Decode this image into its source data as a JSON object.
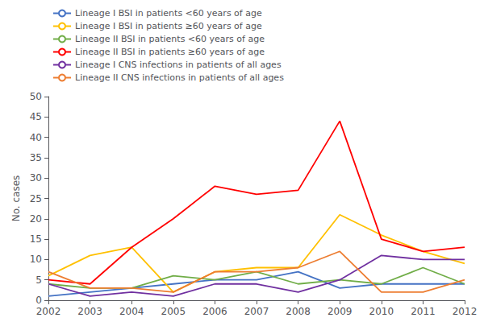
{
  "chart_data": {
    "type": "line",
    "ylabel": "No. cases",
    "x": [
      2002,
      2003,
      2004,
      2005,
      2006,
      2007,
      2008,
      2009,
      2010,
      2011,
      2012
    ],
    "series": [
      {
        "name": "Lineage I BSI in patients <60 years of age",
        "color": "#4472C4",
        "values": [
          1,
          2,
          3,
          4,
          5,
          5,
          7,
          3,
          4,
          4,
          4
        ]
      },
      {
        "name": "Lineage I BSI in patients ≥60 years of age",
        "color": "#FFC000",
        "values": [
          6,
          11,
          13,
          2,
          7,
          8,
          8,
          21,
          16,
          12,
          9
        ]
      },
      {
        "name": "Lineage II BSI in patients <60 years of age",
        "color": "#70AD47",
        "values": [
          4,
          3,
          3,
          6,
          5,
          7,
          4,
          5,
          4,
          8,
          4
        ]
      },
      {
        "name": "Lineage II BSI in patients ≥60 years of age",
        "color": "#FF0000",
        "values": [
          5,
          4,
          13,
          20,
          28,
          26,
          27,
          44,
          15,
          12,
          13
        ]
      },
      {
        "name": "Lineage I CNS infections in patients of all ages",
        "color": "#7030A0",
        "values": [
          4,
          1,
          2,
          1,
          4,
          4,
          2,
          5,
          11,
          10,
          10
        ]
      },
      {
        "name": "Lineage II CNS infections in patients of all ages",
        "color": "#ED7D31",
        "values": [
          7,
          3,
          3,
          2,
          7,
          7,
          8,
          12,
          2,
          2,
          5
        ]
      }
    ],
    "xlim": [
      2002,
      2012
    ],
    "xticks": [
      2002,
      2003,
      2004,
      2005,
      2006,
      2007,
      2008,
      2009,
      2010,
      2011,
      2012
    ],
    "ylim": [
      0,
      50
    ],
    "yticks": [
      0,
      5,
      10,
      15,
      20,
      25,
      30,
      35,
      40,
      45,
      50
    ],
    "grid": false,
    "legend": "upper left"
  }
}
